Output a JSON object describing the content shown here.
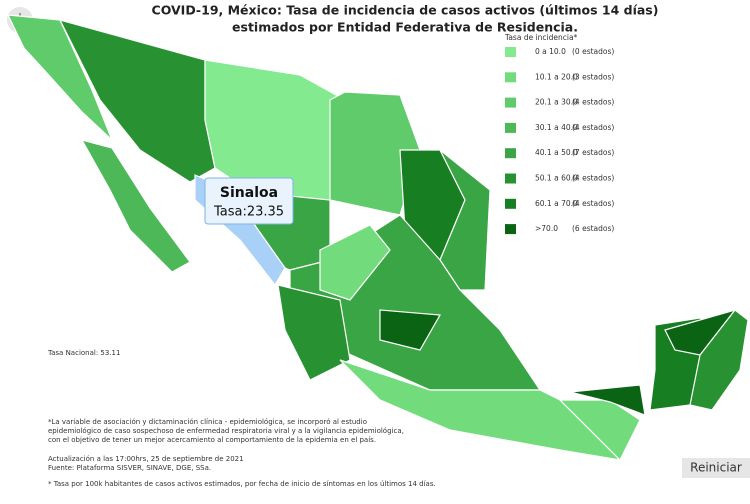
{
  "header": {
    "title_line1": "COVID-19, México: Tasa de incidencia de casos activos (últimos 14 días)",
    "title_line2": "estimados por Entidad Federativa de Residencia."
  },
  "legend": {
    "title": "Tasa de incidencia*",
    "items": [
      {
        "range": "0 a 10.0",
        "count": "(0 estados)",
        "color": "#84ea8f"
      },
      {
        "range": "10.1 a 20.0",
        "count": "(3 estados)",
        "color": "#72dc7d"
      },
      {
        "range": "20.1 a 30.0",
        "count": "(4 estados)",
        "color": "#5fcb6a"
      },
      {
        "range": "30.1 a 40.0",
        "count": "(4 estados)",
        "color": "#4cb857"
      },
      {
        "range": "40.1 a 50.0",
        "count": "(7 estados)",
        "color": "#3aa544"
      },
      {
        "range": "50.1 a 60.0",
        "count": "(4 estados)",
        "color": "#289232"
      },
      {
        "range": "60.1 a 70.0",
        "count": "(4 estados)",
        "color": "#187e22"
      },
      {
        "range": ">70.0",
        "count": "(6 estados)",
        "color": "#0b6414"
      }
    ]
  },
  "tooltip": {
    "state": "Sinaloa",
    "text": "Tasa:23.35"
  },
  "national_rate": "Tasa Nacional: 53.11",
  "notes": [
    "*La variable de asociación y dictaminación clínica - epidemiológica, se incorporó al estudio",
    "epidemiológico de caso sospechoso de enfermedad respiratoria viral y a la vigilancia epidemiológica,",
    "con el objetivo de tener un mejor acercamiento al comportamiento de la epidemia en el país."
  ],
  "update": [
    "Actualización a las 17:00hrs, 25 de septiembre de 2021",
    "Fuente: Plataforma SISVER, SINAVE, DGE, SSa."
  ],
  "footnote": "* Tasa por 100k habitantes de casos activos estimados, por fecha de inicio de síntomas en los últimos 14 días.",
  "button": "Reiniciar"
}
